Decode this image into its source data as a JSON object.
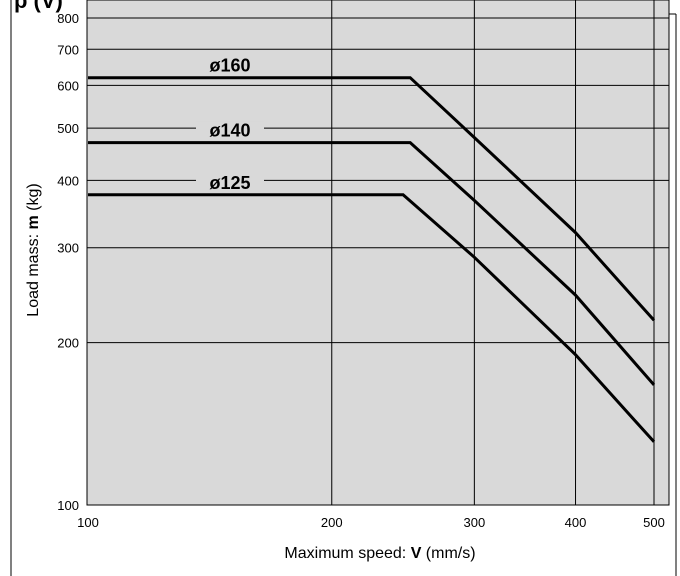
{
  "chart_data": {
    "type": "line",
    "title_fragment": "p (V)",
    "xlabel": {
      "prefix": "Maximum speed: ",
      "symbol": "V",
      "suffix": " (mm/s)"
    },
    "ylabel": {
      "prefix": "Load mass: ",
      "symbol": "m",
      "suffix": " (kg)"
    },
    "x_scale": "log",
    "y_scale": "log",
    "xlim": [
      100,
      520
    ],
    "ylim": [
      100,
      800
    ],
    "x_ticks": [
      100,
      200,
      300,
      400,
      500
    ],
    "y_ticks": [
      100,
      200,
      300,
      400,
      500,
      600,
      700,
      800
    ],
    "grid": true,
    "plot_background": "#d9d9d9",
    "line_color": "#000000",
    "series": [
      {
        "name": "ø160",
        "points": [
          [
            100,
            620
          ],
          [
            250,
            620
          ],
          [
            300,
            480
          ],
          [
            400,
            320
          ],
          [
            500,
            220
          ]
        ]
      },
      {
        "name": "ø140",
        "points": [
          [
            100,
            470
          ],
          [
            250,
            470
          ],
          [
            300,
            367
          ],
          [
            400,
            245
          ],
          [
            500,
            167
          ]
        ]
      },
      {
        "name": "ø125",
        "points": [
          [
            100,
            376
          ],
          [
            245,
            376
          ],
          [
            300,
            288
          ],
          [
            400,
            190
          ],
          [
            500,
            131
          ]
        ]
      }
    ]
  }
}
